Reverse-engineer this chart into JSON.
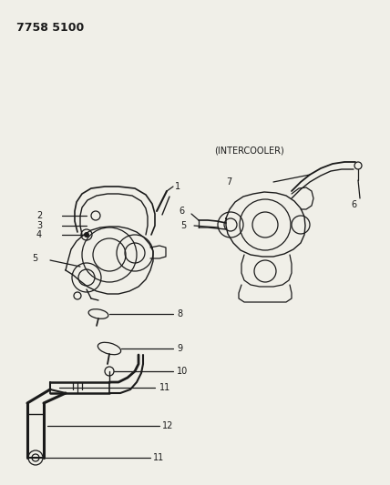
{
  "title": "7758 5100",
  "background_color": "#f0efe8",
  "line_color": "#1a1a1a",
  "text_color": "#1a1a1a",
  "intercooler_label": "(INTERCOOLER)"
}
